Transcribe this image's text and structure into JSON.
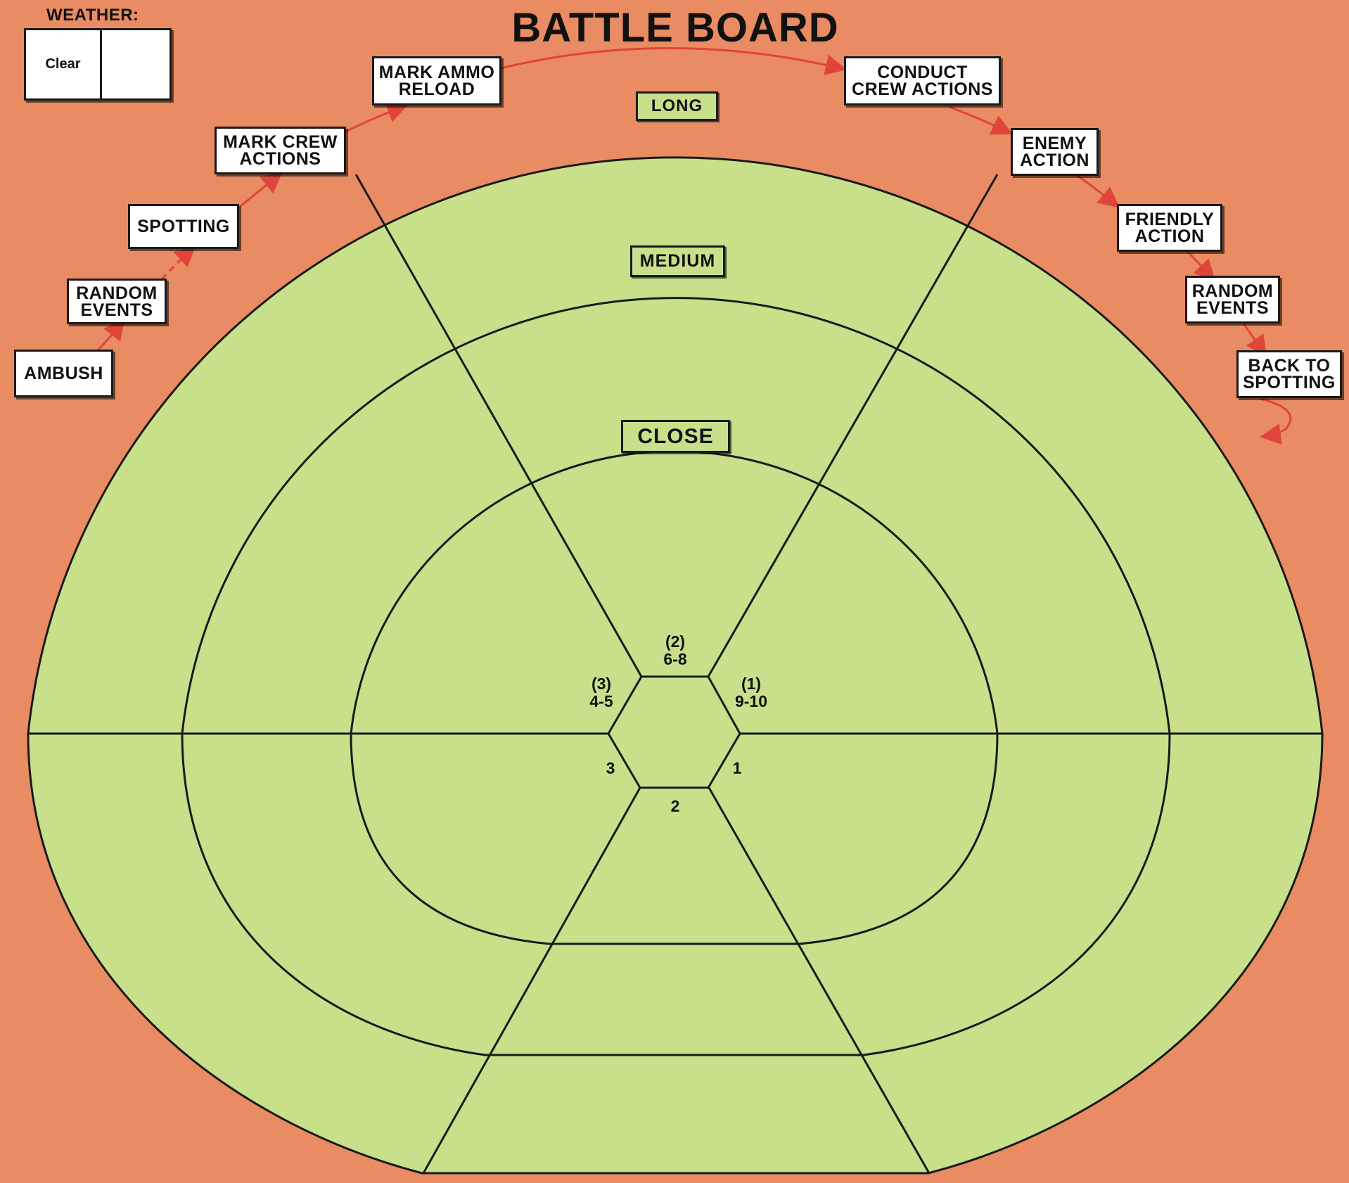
{
  "title": "BATTLE BOARD",
  "weather": {
    "heading": "WEATHER:",
    "value": "Clear",
    "second_value": ""
  },
  "sequence": [
    {
      "id": "ambush",
      "label": "AMBUSH"
    },
    {
      "id": "random-events-1",
      "label": "RANDOM\nEVENTS"
    },
    {
      "id": "spotting",
      "label": "SPOTTING"
    },
    {
      "id": "mark-crew-actions",
      "label": "MARK CREW\nACTIONS"
    },
    {
      "id": "mark-ammo-reload",
      "label": "MARK AMMO\nRELOAD"
    },
    {
      "id": "conduct-crew-actions",
      "label": "CONDUCT\nCREW ACTIONS"
    },
    {
      "id": "enemy-action",
      "label": "ENEMY\nACTION"
    },
    {
      "id": "friendly-action",
      "label": "FRIENDLY\nACTION"
    },
    {
      "id": "random-events-2",
      "label": "RANDOM\nEVENTS"
    },
    {
      "id": "back-to-spotting",
      "label": "BACK TO\nSPOTTING"
    }
  ],
  "ranges": {
    "long": "LONG",
    "medium": "MEDIUM",
    "close": "CLOSE"
  },
  "sectors": {
    "front": "(2)\n6-8",
    "front_left": "(3)\n4-5",
    "front_right": "(1)\n9-10",
    "left": "3",
    "right": "1",
    "rear": "2"
  },
  "colors": {
    "background": "#e98c63",
    "board": "#c8e08a",
    "line": "#1a1a1a",
    "arrow": "#e0443a",
    "label_bg": "#ffffff"
  }
}
